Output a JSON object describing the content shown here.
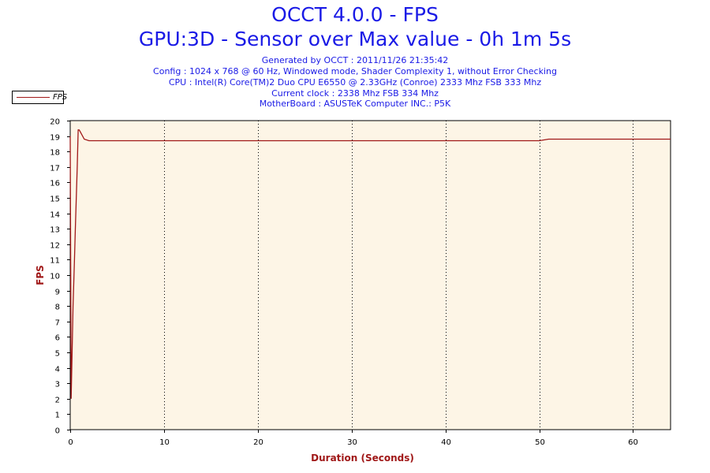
{
  "header": {
    "title": "OCCT 4.0.0 - FPS",
    "subtitle": "GPU:3D - Sensor over Max value - 0h 1m 5s",
    "info_lines": [
      "Generated by OCCT : 2011/11/26 21:35:42",
      "Config : 1024 x 768 @ 60 Hz, Windowed mode, Shader Complexity 1, without Error Checking",
      "CPU : Intel(R) Core(TM)2 Duo CPU E6550 @ 2.33GHz (Conroe) 2333 Mhz FSB 333 Mhz",
      "Current clock : 2338 Mhz FSB 334 Mhz",
      "MotherBoard : ASUSTeK Computer INC.: P5K"
    ]
  },
  "colors": {
    "title": "#1a1ae6",
    "axis_label": "#a01818",
    "series": "#a01818",
    "plot_bg": "#fdf5e6",
    "grid": "#000000"
  },
  "chart_data": {
    "type": "line",
    "title": "OCCT 4.0.0 - FPS",
    "subtitle": "GPU:3D - Sensor over Max value - 0h 1m 5s",
    "xlabel": "Duration (Seconds)",
    "ylabel": "FPS",
    "xlim": [
      0,
      64
    ],
    "ylim": [
      0,
      20
    ],
    "xticks": [
      0,
      10,
      20,
      30,
      40,
      50,
      60
    ],
    "yticks": [
      0,
      1,
      2,
      3,
      4,
      5,
      6,
      7,
      8,
      9,
      10,
      11,
      12,
      13,
      14,
      15,
      16,
      17,
      18,
      19,
      20
    ],
    "grid": "vertical dotted",
    "legend": {
      "position": "top-left",
      "entries": [
        "FPS"
      ]
    },
    "series": [
      {
        "name": "FPS",
        "x": [
          0,
          0.1,
          0.2,
          0.3,
          0.45,
          0.55,
          0.65,
          0.75,
          0.85,
          0.95,
          1.05,
          1.5,
          2,
          10,
          20,
          30,
          40,
          50,
          51,
          60,
          64
        ],
        "y": [
          19,
          2,
          5,
          8,
          11,
          13,
          15,
          17,
          19.4,
          19.4,
          19.3,
          18.8,
          18.7,
          18.7,
          18.7,
          18.7,
          18.7,
          18.7,
          18.8,
          18.8,
          18.8
        ]
      }
    ]
  }
}
